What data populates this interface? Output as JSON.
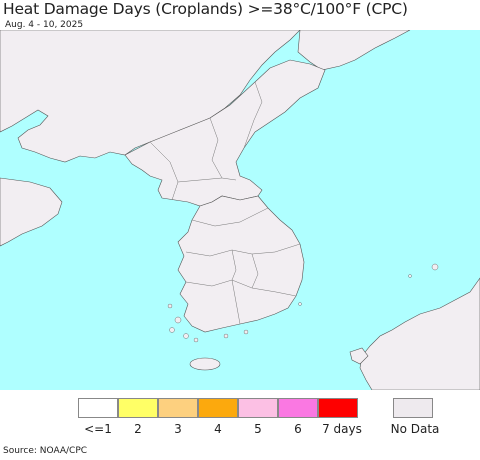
{
  "title": "Heat Damage Days (Croplands) >=38°C/100°F (CPC)",
  "subtitle": "Aug. 4 - 10, 2025",
  "legend": {
    "items": [
      {
        "label": "<=1",
        "color": "#ffffff"
      },
      {
        "label": "2",
        "color": "#ffff66"
      },
      {
        "label": "3",
        "color": "#fdd07f"
      },
      {
        "label": "4",
        "color": "#fca90d"
      },
      {
        "label": "5",
        "color": "#fcc0e4"
      },
      {
        "label": "6",
        "color": "#fa78e2"
      },
      {
        "label": "7 days",
        "color": "#fe0000"
      }
    ],
    "no_data": {
      "label": "No Data",
      "color": "#eeeaee"
    }
  },
  "colors": {
    "water": "#afffff",
    "no_data_land": "#f2eef2",
    "cropland": "#ffffff",
    "border": "#555555"
  },
  "source": "Source: NOAA/CPC"
}
